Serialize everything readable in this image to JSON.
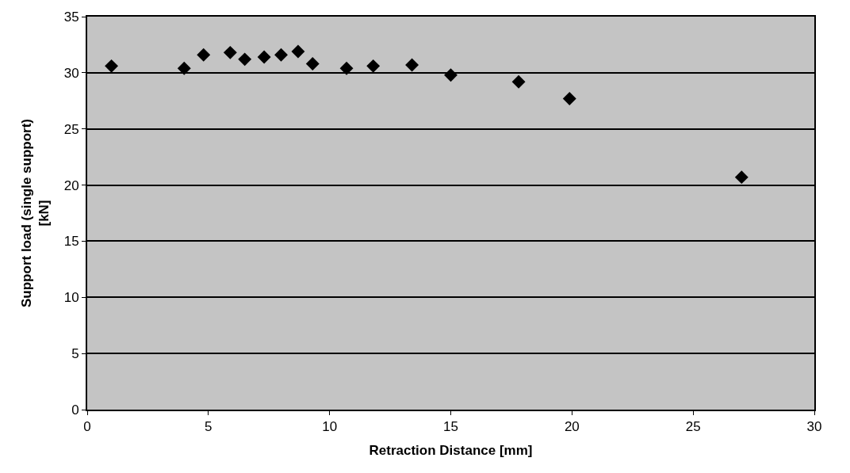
{
  "chart_data": {
    "type": "scatter",
    "xlabel": "Retraction Distance [mm]",
    "ylabel": "Support load (single support) [kN]",
    "x": [
      1,
      4,
      4.8,
      5.9,
      6.5,
      7.3,
      8.0,
      8.7,
      9.3,
      10.7,
      11.8,
      13.4,
      15,
      17.8,
      19.9,
      27
    ],
    "series": [
      {
        "color": "#000000",
        "values": [
          30.6,
          30.4,
          31.6,
          31.8,
          31.2,
          31.4,
          31.6,
          31.9,
          30.8,
          30.4,
          30.6,
          30.7,
          29.8,
          29.2,
          27.7,
          20.7
        ]
      }
    ],
    "xlim": [
      0,
      30
    ],
    "xticks": [
      0,
      5,
      10,
      15,
      20,
      25,
      30
    ],
    "ylim": [
      0,
      35
    ],
    "yticks": [
      0,
      5,
      10,
      15,
      20,
      25,
      30,
      35
    ],
    "grid": "y",
    "marker": "diamond"
  }
}
